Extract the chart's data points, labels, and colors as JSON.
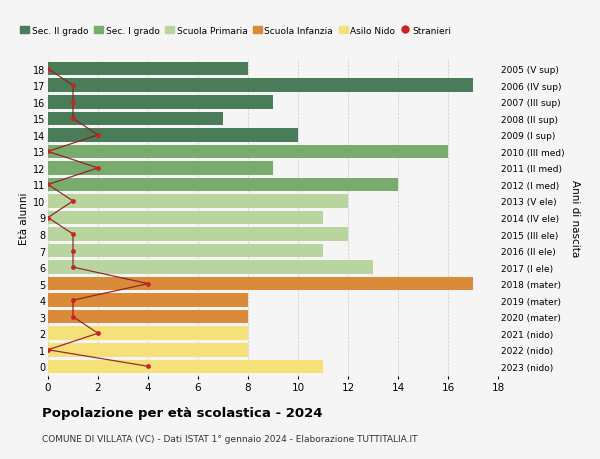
{
  "ages": [
    18,
    17,
    16,
    15,
    14,
    13,
    12,
    11,
    10,
    9,
    8,
    7,
    6,
    5,
    4,
    3,
    2,
    1,
    0
  ],
  "years": [
    "2005 (V sup)",
    "2006 (IV sup)",
    "2007 (III sup)",
    "2008 (II sup)",
    "2009 (I sup)",
    "2010 (III med)",
    "2011 (II med)",
    "2012 (I med)",
    "2013 (V ele)",
    "2014 (IV ele)",
    "2015 (III ele)",
    "2016 (II ele)",
    "2017 (I ele)",
    "2018 (mater)",
    "2019 (mater)",
    "2020 (mater)",
    "2021 (nido)",
    "2022 (nido)",
    "2023 (nido)"
  ],
  "bar_values": [
    8,
    17,
    9,
    7,
    10,
    16,
    9,
    14,
    12,
    11,
    12,
    11,
    13,
    17,
    8,
    8,
    8,
    8,
    11
  ],
  "bar_colors": [
    "#4a7c59",
    "#4a7c59",
    "#4a7c59",
    "#4a7c59",
    "#4a7c59",
    "#7aab6e",
    "#7aab6e",
    "#7aab6e",
    "#b8d5a0",
    "#b8d5a0",
    "#b8d5a0",
    "#b8d5a0",
    "#b8d5a0",
    "#d98b3a",
    "#d98b3a",
    "#d98b3a",
    "#f5e07a",
    "#f5e07a",
    "#f5e07a"
  ],
  "stranieri_values": [
    0,
    1,
    1,
    1,
    2,
    0,
    2,
    0,
    1,
    0,
    1,
    1,
    1,
    4,
    1,
    1,
    2,
    0,
    4
  ],
  "legend_labels": [
    "Sec. II grado",
    "Sec. I grado",
    "Scuola Primaria",
    "Scuola Infanzia",
    "Asilo Nido",
    "Stranieri"
  ],
  "legend_colors": [
    "#4a7c59",
    "#7aab6e",
    "#b8d5a0",
    "#d98b3a",
    "#f5e07a",
    "#cc2222"
  ],
  "title_main": "Popolazione per età scolastica - 2024",
  "title_sub": "COMUNE DI VILLATA (VC) - Dati ISTAT 1° gennaio 2024 - Elaborazione TUTTITALIA.IT",
  "ylabel_left": "Età alunni",
  "ylabel_right": "Anni di nascita",
  "xlim": [
    0,
    18
  ],
  "background_color": "#f5f5f5",
  "grid_color": "#cccccc"
}
